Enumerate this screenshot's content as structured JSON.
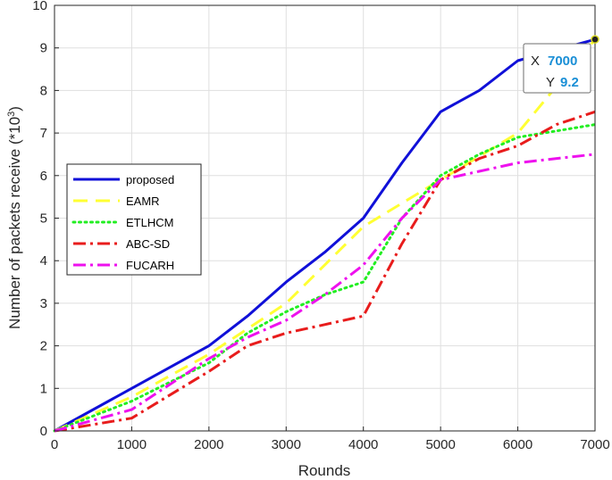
{
  "chart_data": {
    "type": "line",
    "xlabel": "Rounds",
    "ylabel": "Number of packets receive (*10",
    "ylabel_exponent": "3",
    "ylabel_close": ")",
    "xlim": [
      0,
      7000
    ],
    "ylim": [
      0,
      10
    ],
    "grid": true,
    "legend_position": "left-middle",
    "x_ticks": [
      0,
      1000,
      2000,
      3000,
      4000,
      5000,
      6000,
      7000
    ],
    "y_ticks": [
      0,
      1,
      2,
      3,
      4,
      5,
      6,
      7,
      8,
      9,
      10
    ],
    "x_tick_labels": [
      "0",
      "1000",
      "2000",
      "3000",
      "4000",
      "5000",
      "6000",
      "7000"
    ],
    "y_tick_labels": [
      "0",
      "1",
      "2",
      "3",
      "4",
      "5",
      "6",
      "7",
      "8",
      "9",
      "10"
    ],
    "series": [
      {
        "name": "proposed",
        "color": "#1010d8",
        "style": "solid",
        "x": [
          0,
          1000,
          2000,
          2500,
          3000,
          3500,
          4000,
          4500,
          5000,
          5500,
          6000,
          6200,
          7000
        ],
        "y": [
          0,
          1.0,
          2.0,
          2.7,
          3.5,
          4.2,
          5.0,
          6.3,
          7.5,
          8.0,
          8.7,
          8.8,
          9.2
        ]
      },
      {
        "name": "EAMR",
        "color": "#ffff33",
        "style": "dash",
        "x": [
          0,
          1000,
          2000,
          3000,
          4000,
          5000,
          6000,
          7000
        ],
        "y": [
          0,
          0.8,
          1.8,
          3.0,
          4.8,
          5.9,
          7.0,
          9.2
        ]
      },
      {
        "name": "ETLHCM",
        "color": "#22ee22",
        "style": "dot",
        "x": [
          0,
          1000,
          2000,
          2500,
          3000,
          3500,
          4000,
          4500,
          5000,
          5500,
          6000,
          7000
        ],
        "y": [
          0,
          0.7,
          1.6,
          2.3,
          2.8,
          3.2,
          3.5,
          5.0,
          6.0,
          6.5,
          6.9,
          7.2
        ]
      },
      {
        "name": "ABC-SD",
        "color": "#e81c1c",
        "style": "dashdot",
        "x": [
          0,
          1000,
          2000,
          2500,
          3000,
          3500,
          4000,
          4500,
          5000,
          5500,
          6000,
          6500,
          7000
        ],
        "y": [
          0,
          0.3,
          1.4,
          2.0,
          2.3,
          2.5,
          2.7,
          4.4,
          5.9,
          6.4,
          6.7,
          7.2,
          7.5
        ]
      },
      {
        "name": "FUCARH",
        "color": "#ee11ee",
        "style": "dashdot",
        "x": [
          0,
          1000,
          2000,
          2500,
          3000,
          3500,
          4000,
          4500,
          5000,
          5500,
          6000,
          7000
        ],
        "y": [
          0,
          0.5,
          1.7,
          2.2,
          2.6,
          3.2,
          3.9,
          5.0,
          5.9,
          6.1,
          6.3,
          6.5
        ]
      }
    ],
    "datatip": {
      "x_label": "X",
      "x_value": "7000",
      "y_label": "Y",
      "y_value": "9.2",
      "point_x": 7000,
      "point_y": 9.2
    }
  }
}
